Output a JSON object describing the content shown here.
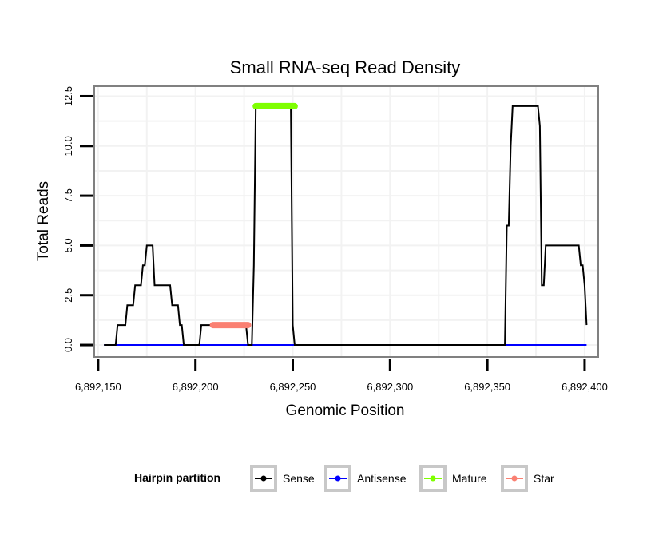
{
  "chart_data": {
    "type": "line",
    "title": "Small RNA-seq Read Density",
    "xlabel": "Genomic Position",
    "ylabel": "Total Reads",
    "xlim": [
      6892148,
      6892407
    ],
    "ylim": [
      -0.6,
      13.0
    ],
    "x_ticks": [
      6892150,
      6892200,
      6892250,
      6892300,
      6892350,
      6892400
    ],
    "x_tick_labels": [
      "6,892,150",
      "6,892,200",
      "6,892,250",
      "6,892,300",
      "6,892,350",
      "6,892,400"
    ],
    "y_ticks": [
      0,
      2.5,
      5,
      7.5,
      10,
      12.5
    ],
    "y_tick_labels": [
      "0.0",
      "2.5",
      "5.0",
      "7.5",
      "10.0",
      "12.5"
    ],
    "grid": true,
    "legend": {
      "title": "Hairpin partition",
      "position": "bottom",
      "entries": [
        "Sense",
        "Antisense",
        "Mature",
        "Star"
      ]
    },
    "series": [
      {
        "name": "Sense",
        "color": "#000000",
        "style": "line",
        "x": [
          6892153,
          6892159,
          6892160,
          6892164,
          6892165,
          6892168,
          6892169,
          6892172,
          6892173,
          6892174,
          6892175,
          6892178,
          6892179,
          6892182,
          6892183,
          6892184,
          6892187,
          6892188,
          6892191,
          6892192,
          6892193,
          6892194,
          6892195,
          6892202,
          6892203,
          6892208,
          6892209,
          6892226,
          6892227,
          6892229,
          6892230,
          6892231,
          6892232,
          6892249,
          6892250,
          6892251,
          6892252,
          6892359,
          6892360,
          6892361,
          6892362,
          6892363,
          6892364,
          6892365,
          6892366,
          6892371,
          6892376,
          6892377,
          6892378,
          6892379,
          6892380,
          6892381,
          6892397,
          6892398,
          6892399,
          6892400,
          6892401
        ],
        "y": [
          0,
          0,
          1,
          1,
          2,
          2,
          3,
          3,
          4,
          4,
          5,
          5,
          3,
          3,
          3,
          3,
          3,
          2,
          2,
          1,
          1,
          0,
          0,
          0,
          1,
          1,
          1,
          1,
          0,
          0,
          4,
          12,
          12,
          12,
          1,
          0,
          0,
          0,
          6,
          6,
          10,
          12,
          12,
          12,
          12,
          12,
          12,
          11,
          3,
          3,
          5,
          5,
          5,
          4,
          4,
          3,
          1
        ]
      },
      {
        "name": "Antisense",
        "color": "#0000ff",
        "style": "line",
        "x": [
          6892153,
          6892401
        ],
        "y": [
          0,
          0
        ]
      },
      {
        "name": "Mature",
        "color": "#7fff00",
        "style": "thick",
        "x": [
          6892231,
          6892251
        ],
        "y": [
          12,
          12
        ]
      },
      {
        "name": "Star",
        "color": "#fa8072",
        "style": "thick",
        "x": [
          6892209,
          6892227
        ],
        "y": [
          1,
          1
        ]
      }
    ]
  }
}
